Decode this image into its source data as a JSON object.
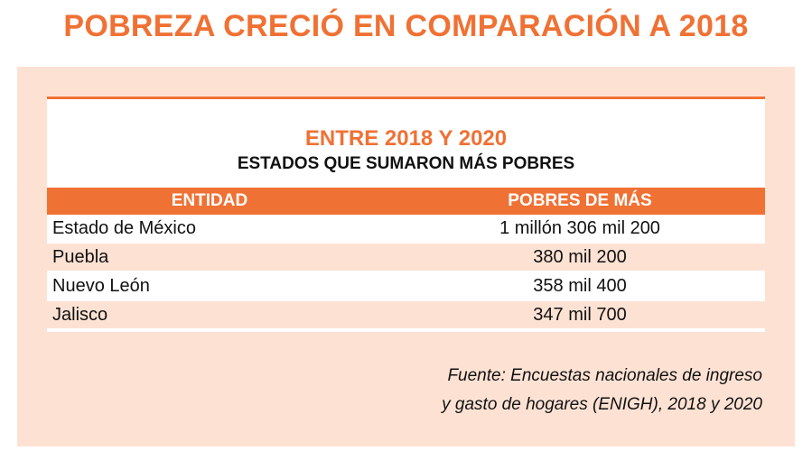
{
  "headline": "POBREZA CRECIÓ EN COMPARACIÓN A 2018",
  "card": {
    "title": "ENTRE 2018 Y 2020",
    "subtitle": "ESTADOS QUE SUMARON MÁS POBRES"
  },
  "table": {
    "headers": [
      "ENTIDAD",
      "POBRES DE MÁS"
    ],
    "rows": [
      [
        "Estado de México",
        "1 millón 306 mil 200"
      ],
      [
        "Puebla",
        "380 mil 200"
      ],
      [
        "Nuevo León",
        "358 mil 400"
      ],
      [
        "Jalisco",
        "347 mil 700"
      ]
    ]
  },
  "source": {
    "line1": "Fuente: Encuestas nacionales de ingreso",
    "line2": "y gasto de hogares (ENIGH), 2018 y 2020"
  },
  "colors": {
    "accent": "#f07134",
    "panel_bg": "#fde2d4"
  }
}
